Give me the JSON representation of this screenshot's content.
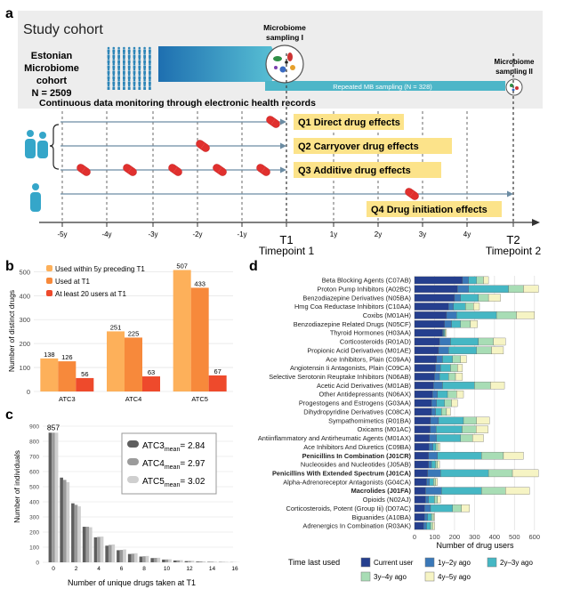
{
  "panel_labels": {
    "a": "a",
    "b": "b",
    "c": "c",
    "d": "d"
  },
  "panel_a": {
    "study_cohort": "Study cohort",
    "cohort_name_lines": [
      "Estonian",
      "Microbiome",
      "cohort",
      "N = 2509"
    ],
    "continuous_monitoring": "Continuous data monitoring through electronic health records",
    "sampling_1": [
      "Microbiome",
      "sampling I"
    ],
    "sampling_2": [
      "Microbiome",
      "sampling II"
    ],
    "repeated_sampling": "Repeated MB sampling (N = 328)",
    "questions": [
      "Q1 Direct drug effects",
      "Q2 Carryover drug effects",
      "Q3 Additive drug effects",
      "Q4 Drug initiation effects"
    ],
    "timeline_ticks": [
      "-5y",
      "-4y",
      "-3y",
      "-2y",
      "-1y",
      "T1",
      "1y",
      "2y",
      "3y",
      "4y",
      "T2"
    ],
    "timepoint_1": "Timepoint 1",
    "timepoint_2": "Timepoint 2",
    "colors": {
      "accent_blue": "#2E8FB5",
      "teal": "#4DB6C8",
      "highlight": "#FCE38A",
      "pill_red": "#E0302E",
      "person": "#35A6C9"
    }
  },
  "panel_b": {
    "ylabel": "Number of distinct drugs",
    "legend": [
      "Used within 5y preceding T1",
      "Used at T1",
      "At least 20 users at T1"
    ],
    "colors": [
      "#FDB05A",
      "#F7893B",
      "#EE4A2C"
    ],
    "chart_data": {
      "type": "bar",
      "categories": [
        "ATC3",
        "ATC4",
        "ATC5"
      ],
      "series": [
        {
          "name": "Used within 5y preceding T1",
          "values": [
            138,
            251,
            507
          ]
        },
        {
          "name": "Used at T1",
          "values": [
            126,
            225,
            433
          ]
        },
        {
          "name": "At least 20 users at T1",
          "values": [
            56,
            63,
            67
          ]
        }
      ],
      "ylim": [
        0,
        520
      ],
      "yticks": [
        0,
        100,
        200,
        300,
        400,
        500
      ]
    }
  },
  "panel_c": {
    "xlabel": "Number of unique drugs taken at T1",
    "ylabel": "Number of individuals",
    "top_label": "857",
    "legend": [
      {
        "name": "ATC3",
        "sub": "mean",
        "value": "= 2.84",
        "color": "#5E5E5E"
      },
      {
        "name": "ATC4",
        "sub": "mean",
        "value": "= 2.97",
        "color": "#9B9B9B"
      },
      {
        "name": "ATC5",
        "sub": "mean",
        "value": "= 3.02",
        "color": "#CFCFCF"
      }
    ],
    "chart_data": {
      "type": "bar",
      "x": [
        0,
        1,
        2,
        3,
        4,
        5,
        6,
        7,
        8,
        9,
        10,
        11,
        12,
        13,
        14,
        15,
        16
      ],
      "series": [
        {
          "name": "ATC3",
          "values": [
            857,
            560,
            390,
            235,
            165,
            110,
            80,
            55,
            38,
            28,
            18,
            12,
            8,
            5,
            3,
            2,
            1
          ]
        },
        {
          "name": "ATC4",
          "values": [
            857,
            545,
            380,
            235,
            168,
            115,
            82,
            57,
            40,
            29,
            19,
            13,
            9,
            6,
            4,
            2,
            1
          ]
        },
        {
          "name": "ATC5",
          "values": [
            857,
            530,
            370,
            232,
            170,
            118,
            85,
            60,
            42,
            30,
            20,
            14,
            10,
            6,
            4,
            3,
            1
          ]
        }
      ],
      "ylim": [
        0,
        900
      ],
      "yticks": [
        0,
        100,
        200,
        300,
        400,
        500,
        600,
        700,
        800,
        900
      ],
      "xticks": [
        0,
        2,
        4,
        6,
        8,
        10,
        12,
        14,
        16
      ]
    }
  },
  "panel_d": {
    "xlabel": "Number of drug users",
    "legend_title": "Time last used",
    "legend": [
      "Current user",
      "1y–2y ago",
      "2y–3y ago",
      "3y–4y ago",
      "4y–5y ago"
    ],
    "colors": [
      "#253F8E",
      "#3A78B8",
      "#45B7C4",
      "#A8DDB5",
      "#F6F4C4"
    ],
    "bold_categories": [
      "Penicillins In Combination (J01CR)",
      "Penicillins With Extended Spectrum (J01CA)",
      "Macrolides (J01FA)"
    ],
    "chart_data": {
      "type": "bar",
      "orientation": "horizontal",
      "stacked": true,
      "categories": [
        "Beta Blocking Agents (C07AB)",
        "Proton Pump Inhibitors (A02BC)",
        "Benzodiazepine Derivatives (N05BA)",
        "Hmg Coa Reductase Inhibitors (C10AA)",
        "Coxibs (M01AH)",
        "Benzodiazepine Related Drugs (N05CF)",
        "Thyroid Hormones (H03AA)",
        "Corticosteroids (R01AD)",
        "Propionic Acid Derivatives (M01AE)",
        "Ace Inhibitors, Plain (C09AA)",
        "Angiotensin Ii Antagonists, Plain (C09CA)",
        "Selective Serotonin Reuptake Inhibitors (N06AB)",
        "Acetic Acid Derivatives (M01AB)",
        "Other Antidepressants (N06AX)",
        "Progestogens and Estrogens (G03AA)",
        "Dihydropyridine Derivatives (C08CA)",
        "Sympathomimetics (R01BA)",
        "Oxicams (M01AC)",
        "Antiinflammatory and Antirheumatic Agents (M01AX)",
        "Ace Inhibitors And Diuretics (C09BA)",
        "Penicillins In Combination (J01CR)",
        "Nucleosides and Nucleotides (J05AB)",
        "Penicillins With Extended Spectrum (J01CA)",
        "Alpha-Adrenoreceptor Antagonists (G04CA)",
        "Macrolides (J01FA)",
        "Opioids (N02AJ)",
        "Corticosteroids, Potent (Group Iii) (D07AC)",
        "Biguanides (A10BA)",
        "Adrenergics In Combination (R03AK)"
      ],
      "series": [
        {
          "name": "Current user",
          "values": [
            240,
            215,
            200,
            170,
            160,
            150,
            140,
            125,
            120,
            110,
            105,
            100,
            95,
            90,
            85,
            85,
            80,
            78,
            75,
            72,
            70,
            70,
            65,
            60,
            55,
            55,
            50,
            50,
            45
          ]
        },
        {
          "name": "1y–2y ago",
          "values": [
            30,
            55,
            30,
            25,
            50,
            35,
            5,
            55,
            50,
            30,
            25,
            25,
            45,
            25,
            25,
            20,
            40,
            30,
            35,
            20,
            45,
            15,
            65,
            15,
            80,
            15,
            30,
            15,
            15
          ]
        },
        {
          "name": "2y–3y ago",
          "values": [
            40,
            200,
            90,
            60,
            200,
            45,
            5,
            140,
            140,
            50,
            50,
            45,
            160,
            50,
            40,
            30,
            125,
            130,
            120,
            15,
            220,
            20,
            240,
            20,
            200,
            30,
            110,
            20,
            20
          ]
        },
        {
          "name": "3y–4y ago",
          "values": [
            35,
            75,
            50,
            40,
            100,
            50,
            5,
            75,
            75,
            40,
            35,
            35,
            80,
            45,
            35,
            25,
            65,
            70,
            60,
            10,
            110,
            10,
            120,
            10,
            120,
            15,
            45,
            10,
            10
          ]
        },
        {
          "name": "4y–5y ago",
          "values": [
            25,
            75,
            60,
            30,
            90,
            35,
            5,
            60,
            60,
            30,
            25,
            35,
            70,
            35,
            30,
            20,
            65,
            60,
            55,
            10,
            100,
            10,
            130,
            10,
            120,
            15,
            40,
            5,
            10
          ]
        }
      ],
      "xlim": [
        0,
        650
      ],
      "xticks": [
        0,
        100,
        200,
        300,
        400,
        500,
        600
      ]
    }
  }
}
